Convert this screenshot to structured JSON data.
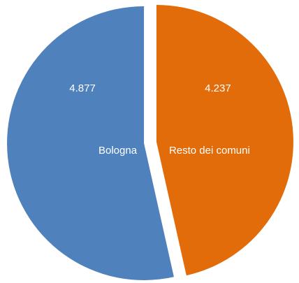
{
  "chart_data": {
    "type": "pie",
    "title": "",
    "slices": [
      {
        "label": "Bologna",
        "value": 4877,
        "value_label": "4.877",
        "color": "#4f81bd"
      },
      {
        "label": "Resto dei comuni",
        "value": 4237,
        "value_label": "4.237",
        "color": "#e36c0a"
      }
    ],
    "start_angle_deg": 0,
    "direction": "counterclockwise",
    "exploded": true,
    "legend": "none"
  }
}
